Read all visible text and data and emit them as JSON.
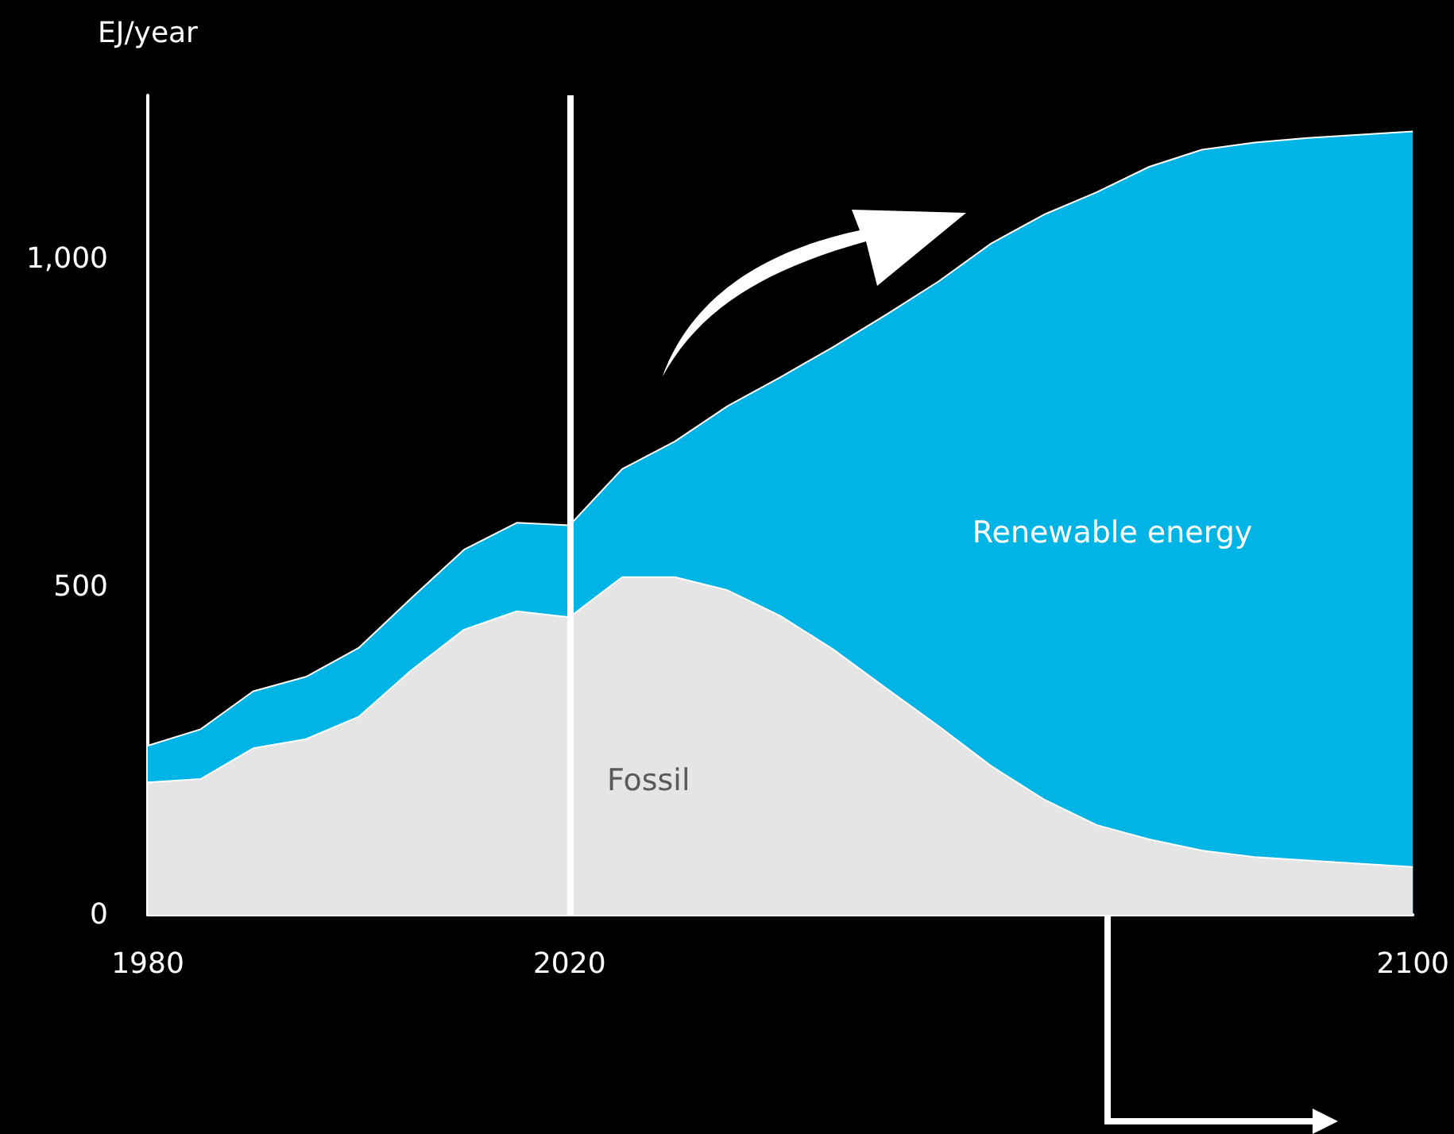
{
  "chart_data": {
    "type": "area",
    "ylabel": "EJ/year",
    "stacked": true,
    "marker": "none",
    "x": [
      1980,
      1985,
      1990,
      1995,
      2000,
      2005,
      2010,
      2015,
      2020,
      2025,
      2030,
      2035,
      2040,
      2045,
      2050,
      2055,
      2060,
      2065,
      2070,
      2075,
      2080,
      2085,
      2090,
      2100
    ],
    "series": [
      {
        "name": "Fossil",
        "color": "#e6e5e6",
        "values": [
          202,
          207,
          254,
          268,
          302,
          373,
          435,
          463,
          454,
          515,
          515,
          495,
          456,
          405,
          346,
          288,
          227,
          176,
          137,
          115,
          98,
          88,
          83,
          73
        ]
      },
      {
        "name": "Renewable energy",
        "color": "#00b4e6",
        "values": [
          56,
          76,
          87,
          95,
          105,
          110,
          122,
          135,
          140,
          165,
          207,
          281,
          364,
          461,
          569,
          678,
          797,
          892,
          965,
          1026,
          1069,
          1090,
          1102,
          1122
        ]
      }
    ],
    "xlim": [
      1980,
      2100
    ],
    "xticks": [
      1980,
      2020,
      2100
    ],
    "ylim": [
      0,
      1250
    ],
    "yticks": [
      0,
      500,
      {
        "value": 1000,
        "label": "1,000"
      }
    ],
    "ref_lines": [
      {
        "axis": "x",
        "value": 2020,
        "color": "#ffffff"
      }
    ]
  }
}
